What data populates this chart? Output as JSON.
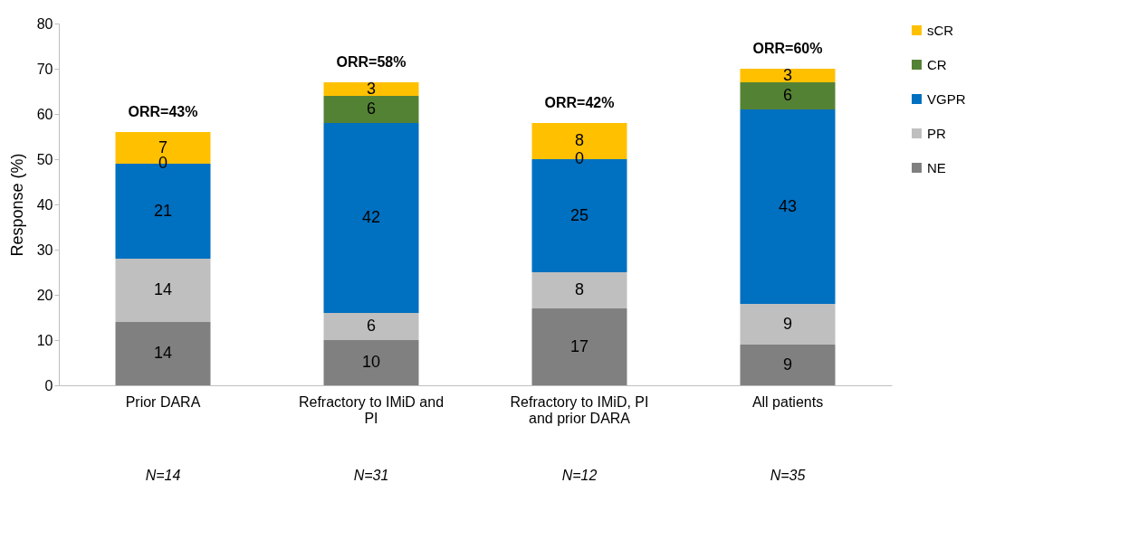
{
  "chart_data": {
    "type": "bar",
    "stacked": true,
    "ylabel": "Response (%)",
    "categories": [
      "Prior DARA",
      "Refractory to IMiD and PI",
      "Refractory to IMiD, PI and prior DARA",
      "All patients"
    ],
    "series": [
      {
        "name": "NE",
        "color": "#808080",
        "values": [
          14,
          10,
          17,
          9
        ]
      },
      {
        "name": "PR",
        "color": "#bfbfbf",
        "values": [
          14,
          6,
          8,
          9
        ]
      },
      {
        "name": "VGPR",
        "color": "#0070c0",
        "values": [
          21,
          42,
          25,
          43
        ]
      },
      {
        "name": "CR",
        "color": "#548235",
        "values": [
          0,
          6,
          0,
          6
        ]
      },
      {
        "name": "sCR",
        "color": "#ffc000",
        "values": [
          7,
          3,
          8,
          3
        ]
      }
    ],
    "ylim": [
      0,
      80
    ],
    "yticks": [
      0,
      10,
      20,
      30,
      40,
      50,
      60,
      70,
      80
    ],
    "grid": false,
    "legend": "right",
    "data_labels": true,
    "annotations": [
      {
        "text": "ORR=43%",
        "x": "Prior DARA",
        "y": 56
      },
      {
        "text": "ORR=58%",
        "x": "Refractory to IMiD and PI",
        "y": 67
      },
      {
        "text": "ORR=42%",
        "x": "Refractory to IMiD, PI and prior DARA",
        "y": 58
      },
      {
        "text": "ORR=60%",
        "x": "All patients",
        "y": 70
      },
      "N=14",
      "N=31",
      "N=12",
      "N=35"
    ]
  }
}
